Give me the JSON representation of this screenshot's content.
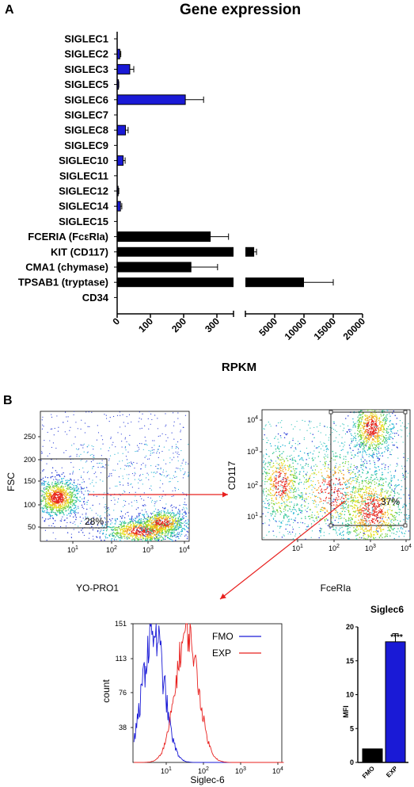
{
  "panel_a_letter": "A",
  "panel_b_letter": "B",
  "chart_data": [
    {
      "type": "bar",
      "orientation": "horizontal",
      "title": "Gene expression",
      "xlabel": "RPKM",
      "categories": [
        "SIGLEC1",
        "SIGLEC2",
        "SIGLEC3",
        "SIGLEC5",
        "SIGLEC6",
        "SIGLEC7",
        "SIGLEC8",
        "SIGLEC9",
        "SIGLEC10",
        "SIGLEC11",
        "SIGLEC12",
        "SIGLEC14",
        "SIGLEC15",
        "FCERIA (FcεRIa)",
        "KIT (CD117)",
        "CMA1 (chymase)",
        "TPSAB1 (tryptase)",
        "CD34"
      ],
      "values": [
        0,
        8,
        38,
        4,
        205,
        0,
        25,
        0,
        18,
        0,
        3,
        10,
        0,
        280,
        1500,
        222,
        10000,
        0
      ],
      "errors": [
        0,
        3,
        12,
        1,
        55,
        0,
        8,
        0,
        6,
        0,
        2,
        4,
        0,
        55,
        400,
        80,
        5000,
        0
      ],
      "bar_colors": [
        "#1a1ad6",
        "#1a1ad6",
        "#1a1ad6",
        "#1a1ad6",
        "#1a1ad6",
        "#1a1ad6",
        "#1a1ad6",
        "#1a1ad6",
        "#1a1ad6",
        "#1a1ad6",
        "#1a1ad6",
        "#1a1ad6",
        "#1a1ad6",
        "#000000",
        "#000000",
        "#000000",
        "#000000",
        "#000000"
      ],
      "axis_break": {
        "segment1": [
          0,
          350
        ],
        "segment2": [
          0,
          20000
        ]
      },
      "x_ticks_seg1": [
        "0",
        "100",
        "200",
        "300"
      ],
      "x_ticks_seg2": [
        "5000",
        "10000",
        "15000",
        "20000"
      ]
    },
    {
      "type": "scatter",
      "description_kind": "flow-cytometry density plot",
      "xlabel": "YO-PRO1",
      "ylabel": "FSC",
      "y_ticks": [
        "50",
        "100",
        "150",
        "200",
        "250"
      ],
      "x_ticks": [
        {
          "base": "10",
          "exp": "1"
        },
        {
          "base": "10",
          "exp": "2"
        },
        {
          "base": "10",
          "exp": "3"
        },
        {
          "base": "10",
          "exp": "4"
        }
      ],
      "gate_label": "28%"
    },
    {
      "type": "scatter",
      "description_kind": "flow-cytometry density plot",
      "xlabel": "FceRIa",
      "ylabel": "CD117",
      "y_ticks": [
        {
          "base": "10",
          "exp": "1"
        },
        {
          "base": "10",
          "exp": "2"
        },
        {
          "base": "10",
          "exp": "3"
        },
        {
          "base": "10",
          "exp": "4"
        }
      ],
      "x_ticks": [
        {
          "base": "10",
          "exp": "1"
        },
        {
          "base": "10",
          "exp": "2"
        },
        {
          "base": "10",
          "exp": "3"
        },
        {
          "base": "10",
          "exp": "4"
        }
      ],
      "gate_label": "37%"
    },
    {
      "type": "line",
      "description_kind": "histogram overlay",
      "xlabel": "Siglec-6",
      "ylabel": "count",
      "y_ticks": [
        "38",
        "76",
        "113",
        "151"
      ],
      "x_ticks": [
        {
          "base": "10",
          "exp": "1"
        },
        {
          "base": "10",
          "exp": "2"
        },
        {
          "base": "10",
          "exp": "3"
        },
        {
          "base": "10",
          "exp": "4"
        }
      ],
      "series": [
        {
          "name": "FMO",
          "color": "#1a1ad6",
          "peak_log10": 0.55,
          "peak_count": 151
        },
        {
          "name": "EXP",
          "color": "#e8201e",
          "peak_log10": 1.45,
          "peak_count": 148
        }
      ]
    },
    {
      "type": "bar",
      "title": "Siglec6",
      "ylabel": "MFI",
      "categories": [
        "FMO",
        "EXP"
      ],
      "values": [
        2,
        17.8
      ],
      "errors": [
        0,
        1.2
      ],
      "bar_colors": [
        "#000000",
        "#1a1ad6"
      ],
      "ylim": [
        0,
        20
      ],
      "y_ticks": [
        "0",
        "5",
        "10",
        "15",
        "20"
      ],
      "significance": "****"
    }
  ]
}
